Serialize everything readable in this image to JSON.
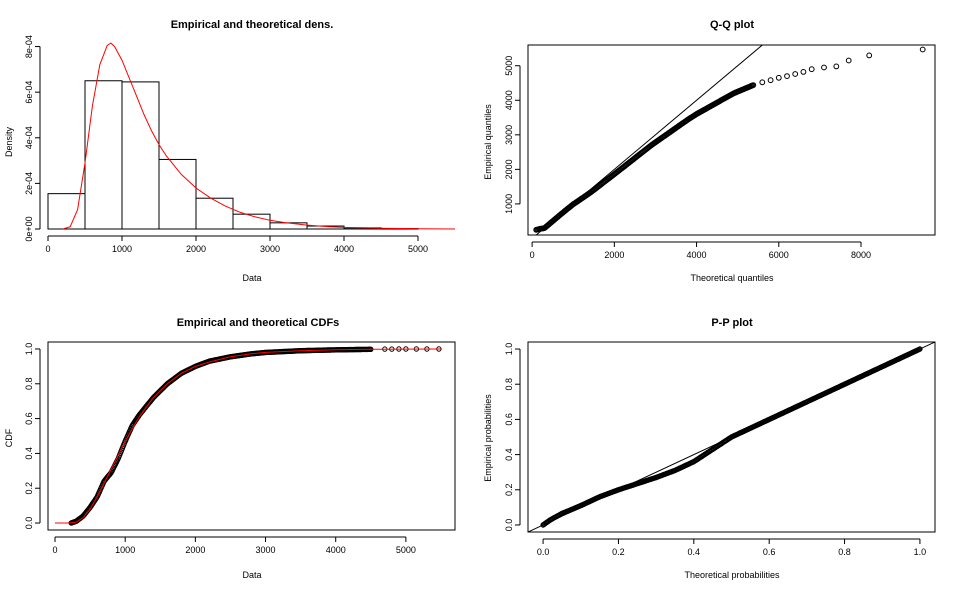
{
  "chart_data": [
    {
      "type": "histogram",
      "title": "Empirical and theoretical dens.",
      "xlabel": "Data",
      "ylabel": "Density",
      "xlim": [
        0,
        5500
      ],
      "ylim": [
        0,
        0.00082
      ],
      "xticks": [
        0,
        1000,
        2000,
        3000,
        4000,
        5000
      ],
      "xtick_labels": [
        "0",
        "1000",
        "2000",
        "3000",
        "4000",
        "5000"
      ],
      "yticks": [
        0,
        0.0002,
        0.0004,
        0.0006,
        0.0008
      ],
      "ytick_labels": [
        "0e+00",
        "2e-04",
        "4e-04",
        "6e-04",
        "8e-04"
      ],
      "bins": [
        0,
        500,
        1000,
        1500,
        2000,
        2500,
        3000,
        3500,
        4000,
        4500,
        5000
      ],
      "values": [
        0.000155,
        0.00065,
        0.000645,
        0.000305,
        0.000135,
        6.5e-05,
        2.7e-05,
        1.3e-05,
        5e-06,
        2e-06
      ],
      "density_curve": {
        "color": "#ff0000",
        "x": [
          200,
          300,
          400,
          500,
          600,
          700,
          800,
          850,
          900,
          1000,
          1100,
          1200,
          1300,
          1400,
          1500,
          1600,
          1800,
          2000,
          2200,
          2400,
          2600,
          2800,
          3000,
          3200,
          3500,
          3800,
          4000,
          4500,
          5000,
          5500
        ],
        "y": [
          0,
          1e-05,
          8.5e-05,
          0.00029,
          0.00054,
          0.00072,
          0.000805,
          0.000815,
          0.0008,
          0.00074,
          0.00066,
          0.00058,
          0.0005,
          0.00043,
          0.00037,
          0.00032,
          0.00024,
          0.00018,
          0.000135,
          0.0001,
          7.3e-05,
          5.3e-05,
          3.8e-05,
          2.8e-05,
          1.7e-05,
          1e-05,
          7e-06,
          3e-06,
          1e-06,
          0
        ]
      }
    },
    {
      "type": "scatter",
      "title": "Q-Q plot",
      "xlabel": "Theoretical quantiles",
      "ylabel": "Empirical quantiles",
      "xlim": [
        -100,
        9800
      ],
      "ylim": [
        100,
        5600
      ],
      "xticks": [
        0,
        2000,
        4000,
        6000,
        8000
      ],
      "xtick_labels": [
        "0",
        "2000",
        "4000",
        "6000",
        "8000"
      ],
      "yticks": [
        1000,
        2000,
        3000,
        4000,
        5000
      ],
      "ytick_labels": [
        "1000",
        "2000",
        "3000",
        "4000",
        "5000"
      ],
      "reference_line": "y = x",
      "points_x": [
        100,
        200,
        300,
        400,
        600,
        800,
        1000,
        1200,
        1500,
        1800,
        2000,
        2300,
        2600,
        2900,
        3200,
        3500,
        3800,
        4000,
        4300,
        4600,
        4900,
        5200,
        5400,
        5600,
        5800,
        6000,
        6200,
        6400,
        6600,
        6800,
        7100,
        7400,
        7700,
        8200,
        9500
      ],
      "points_y": [
        250,
        280,
        300,
        400,
        600,
        800,
        990,
        1150,
        1400,
        1680,
        1860,
        2140,
        2420,
        2700,
        2950,
        3200,
        3450,
        3600,
        3800,
        4000,
        4200,
        4350,
        4450,
        4520,
        4580,
        4650,
        4700,
        4760,
        4820,
        4900,
        4950,
        4980,
        5150,
        5300,
        5470
      ]
    },
    {
      "type": "line",
      "title": "Empirical and theoretical CDFs",
      "xlabel": "Data",
      "ylabel": "CDF",
      "xlim": [
        -100,
        5700
      ],
      "ylim": [
        -0.04,
        1.04
      ],
      "xticks": [
        0,
        1000,
        2000,
        3000,
        4000,
        5000
      ],
      "xtick_labels": [
        "0",
        "1000",
        "2000",
        "3000",
        "4000",
        "5000"
      ],
      "yticks": [
        0,
        0.2,
        0.4,
        0.6,
        0.8,
        1.0
      ],
      "ytick_labels": [
        "0.0",
        "0.2",
        "0.4",
        "0.6",
        "0.8",
        "1.0"
      ],
      "theoretical_color": "#ff0000",
      "theoretical_x": [
        0,
        200,
        300,
        400,
        500,
        600,
        700,
        800,
        900,
        1000,
        1100,
        1200,
        1400,
        1600,
        1800,
        2000,
        2200,
        2500,
        2800,
        3000,
        3500,
        4000,
        4500,
        5000,
        5500
      ],
      "theoretical_y": [
        0,
        0,
        0.005,
        0.03,
        0.08,
        0.15,
        0.23,
        0.31,
        0.39,
        0.47,
        0.54,
        0.61,
        0.72,
        0.8,
        0.86,
        0.9,
        0.925,
        0.955,
        0.972,
        0.98,
        0.99,
        0.995,
        0.998,
        0.999,
        1.0
      ],
      "empirical_x": [
        230,
        300,
        400,
        500,
        600,
        700,
        800,
        900,
        1000,
        1100,
        1200,
        1300,
        1400,
        1500,
        1600,
        1800,
        2000,
        2200,
        2500,
        2800,
        3000,
        3500,
        4000,
        4500,
        4700,
        4800,
        4900,
        5000,
        5150,
        5300,
        5470
      ],
      "empirical_y": [
        0.0,
        0.01,
        0.04,
        0.09,
        0.15,
        0.24,
        0.29,
        0.37,
        0.47,
        0.56,
        0.62,
        0.67,
        0.72,
        0.76,
        0.8,
        0.86,
        0.9,
        0.93,
        0.955,
        0.972,
        0.98,
        0.99,
        0.995,
        0.998,
        0.999,
        0.999,
        1.0,
        1.0,
        1.0,
        1.0,
        1.0
      ]
    },
    {
      "type": "scatter",
      "title": "P-P plot",
      "xlabel": "Theoretical probabilities",
      "ylabel": "Empirical probabilities",
      "xlim": [
        -0.04,
        1.04
      ],
      "ylim": [
        -0.04,
        1.04
      ],
      "xticks": [
        0,
        0.2,
        0.4,
        0.6,
        0.8,
        1.0
      ],
      "xtick_labels": [
        "0.0",
        "0.2",
        "0.4",
        "0.6",
        "0.8",
        "1.0"
      ],
      "yticks": [
        0,
        0.2,
        0.4,
        0.6,
        0.8,
        1.0
      ],
      "ytick_labels": [
        "0.0",
        "0.2",
        "0.4",
        "0.6",
        "0.8",
        "1.0"
      ],
      "reference_line": "y = x",
      "points_x": [
        0,
        0.02,
        0.05,
        0.1,
        0.15,
        0.2,
        0.25,
        0.3,
        0.35,
        0.4,
        0.45,
        0.5,
        0.55,
        0.6,
        0.65,
        0.7,
        0.75,
        0.8,
        0.85,
        0.9,
        0.95,
        1.0
      ],
      "points_y": [
        0,
        0.03,
        0.065,
        0.11,
        0.16,
        0.2,
        0.235,
        0.27,
        0.31,
        0.36,
        0.43,
        0.5,
        0.55,
        0.6,
        0.65,
        0.7,
        0.75,
        0.8,
        0.85,
        0.9,
        0.95,
        1.0
      ]
    }
  ]
}
